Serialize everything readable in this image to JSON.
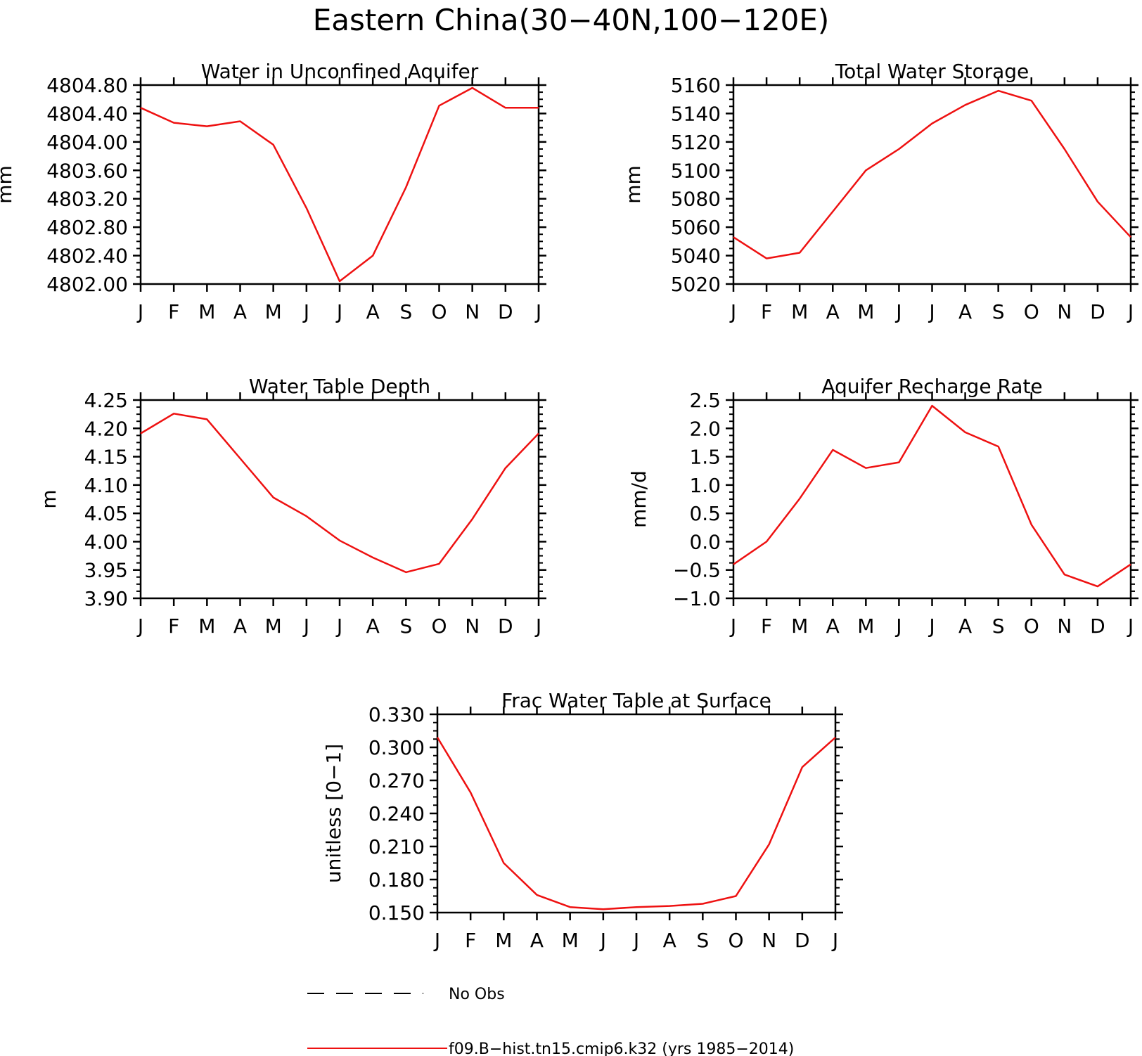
{
  "figure_title": "Eastern China(30−40N,100−120E)",
  "legend": {
    "obs_label": "No Obs",
    "model_label": "f09.B−hist.tn15.cmip6.k32 (yrs 1985−2014)",
    "obs_style": "dashed-black",
    "model_color": "#ee1111"
  },
  "colors": {
    "line": "#ee1111",
    "axes": "#000000"
  },
  "chart_data": [
    {
      "type": "line",
      "title": "Water in Unconfined Aquifer",
      "ylabel": "mm",
      "categories": [
        "J",
        "F",
        "M",
        "A",
        "M",
        "J",
        "J",
        "A",
        "S",
        "O",
        "N",
        "D",
        "J"
      ],
      "ylim": [
        4802.0,
        4804.8
      ],
      "yticks": [
        "4804.80",
        "4804.40",
        "4804.00",
        "4803.60",
        "4803.20",
        "4802.80",
        "4802.40",
        "4802.00"
      ],
      "series": [
        {
          "values": [
            4804.48,
            4804.27,
            4804.22,
            4804.29,
            4803.96,
            4803.07,
            4802.04,
            4802.4,
            4803.36,
            4804.51,
            4804.76,
            4804.48,
            4804.48
          ]
        }
      ]
    },
    {
      "type": "line",
      "title": "Total Water Storage",
      "ylabel": "mm",
      "categories": [
        "J",
        "F",
        "M",
        "A",
        "M",
        "J",
        "J",
        "A",
        "S",
        "O",
        "N",
        "D",
        "J"
      ],
      "ylim": [
        5020,
        5160
      ],
      "yticks": [
        "5160",
        "5140",
        "5120",
        "5100",
        "5080",
        "5060",
        "5040",
        "5020"
      ],
      "series": [
        {
          "values": [
            5053,
            5038,
            5042,
            5071,
            5100,
            5115,
            5133,
            5146,
            5156,
            5149,
            5115,
            5078,
            5053
          ]
        }
      ]
    },
    {
      "type": "line",
      "title": "Water Table Depth",
      "ylabel": "m",
      "categories": [
        "J",
        "F",
        "M",
        "A",
        "M",
        "J",
        "J",
        "A",
        "S",
        "O",
        "N",
        "D",
        "J"
      ],
      "ylim": [
        3.9,
        4.25
      ],
      "yticks": [
        "4.25",
        "4.20",
        "4.15",
        "4.10",
        "4.05",
        "4.00",
        "3.95",
        "3.90"
      ],
      "series": [
        {
          "values": [
            4.191,
            4.226,
            4.216,
            4.147,
            4.078,
            4.045,
            4.002,
            3.972,
            3.946,
            3.961,
            4.04,
            4.13,
            4.191
          ]
        }
      ]
    },
    {
      "type": "line",
      "title": "Aquifer Recharge Rate",
      "ylabel": "mm/d",
      "categories": [
        "J",
        "F",
        "M",
        "A",
        "M",
        "J",
        "J",
        "A",
        "S",
        "O",
        "N",
        "D",
        "J"
      ],
      "ylim": [
        -1.0,
        2.5
      ],
      "yticks": [
        "2.5",
        "2.0",
        "1.5",
        "1.0",
        "0.5",
        "0.0",
        "−0.5",
        "−1.0"
      ],
      "series": [
        {
          "values": [
            -0.4,
            0.0,
            0.76,
            1.62,
            1.3,
            1.4,
            2.4,
            1.93,
            1.68,
            0.3,
            -0.58,
            -0.79,
            -0.4
          ]
        }
      ]
    },
    {
      "type": "line",
      "title": "Frac Water Table at Surface",
      "ylabel": "unitless [0−1]",
      "categories": [
        "J",
        "F",
        "M",
        "A",
        "M",
        "J",
        "J",
        "A",
        "S",
        "O",
        "N",
        "D",
        "J"
      ],
      "ylim": [
        0.15,
        0.33
      ],
      "yticks": [
        "0.330",
        "0.300",
        "0.270",
        "0.240",
        "0.210",
        "0.180",
        "0.150"
      ],
      "series": [
        {
          "values": [
            0.309,
            0.259,
            0.195,
            0.166,
            0.155,
            0.153,
            0.155,
            0.156,
            0.158,
            0.165,
            0.212,
            0.282,
            0.309
          ]
        }
      ]
    }
  ]
}
